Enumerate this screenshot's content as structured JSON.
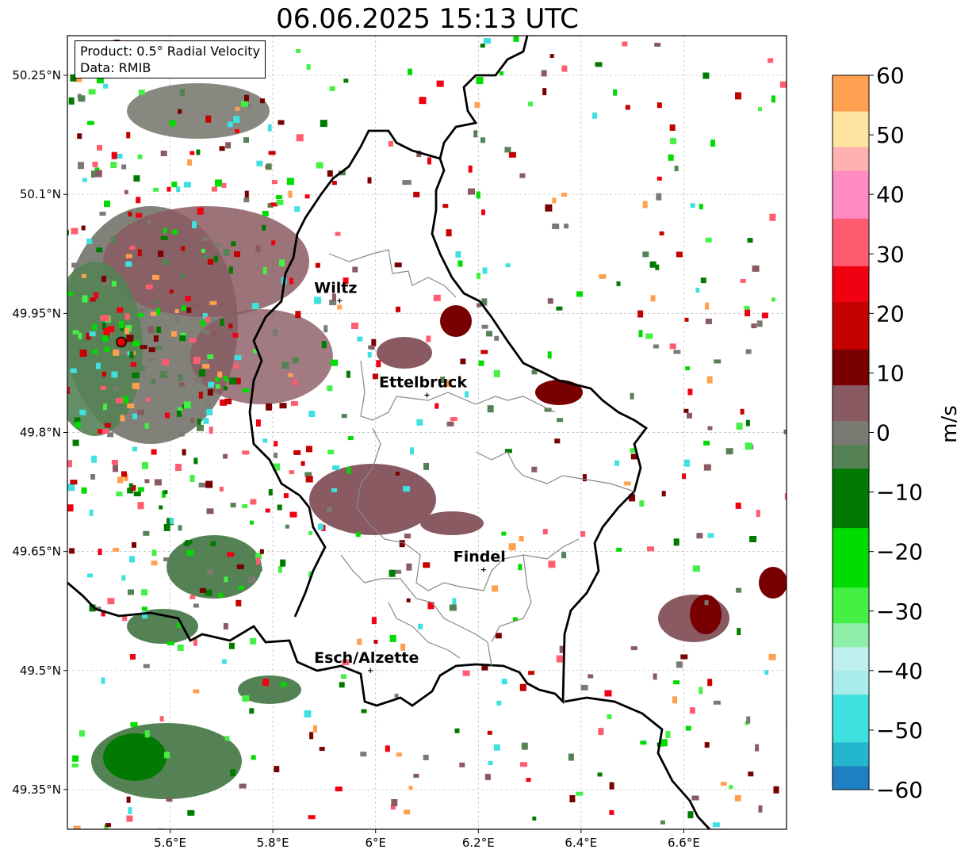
{
  "title": "06.06.2025 15:13 UTC",
  "info": {
    "product": "Product: 0.5° Radial Velocity",
    "data": "Data: RMIB"
  },
  "map": {
    "lon_range": [
      5.4,
      6.8
    ],
    "lat_range": [
      49.3,
      50.3
    ],
    "lon_ticks": [
      {
        "value": 5.6,
        "label": "5.6°E"
      },
      {
        "value": 5.8,
        "label": "5.8°E"
      },
      {
        "value": 6.0,
        "label": "6°E"
      },
      {
        "value": 6.2,
        "label": "6.2°E"
      },
      {
        "value": 6.4,
        "label": "6.4°E"
      },
      {
        "value": 6.6,
        "label": "6.6°E"
      }
    ],
    "lat_ticks": [
      {
        "value": 50.25,
        "label": "50.25°N"
      },
      {
        "value": 50.1,
        "label": "50.1°N"
      },
      {
        "value": 49.95,
        "label": "49.95°N"
      },
      {
        "value": 49.8,
        "label": "49.8°N"
      },
      {
        "value": 49.65,
        "label": "49.65°N"
      },
      {
        "value": 49.5,
        "label": "49.5°N"
      },
      {
        "value": 49.35,
        "label": "49.35°N"
      }
    ],
    "radar_site": {
      "lon": 5.505,
      "lat": 49.914
    },
    "cities": [
      {
        "name": "Wiltz",
        "lon": 5.93,
        "lat": 49.966
      },
      {
        "name": "Ettelbruck",
        "lon": 6.1,
        "lat": 49.847
      },
      {
        "name": "Findel",
        "lon": 6.21,
        "lat": 49.627
      },
      {
        "name": "Esch/Alzette",
        "lon": 5.99,
        "lat": 49.5
      }
    ]
  },
  "colorbar": {
    "label": "m/s",
    "range": [
      -60,
      60
    ],
    "ticks": [
      {
        "value": 60,
        "label": "60"
      },
      {
        "value": 50,
        "label": "50"
      },
      {
        "value": 40,
        "label": "40"
      },
      {
        "value": 30,
        "label": "30"
      },
      {
        "value": 20,
        "label": "20"
      },
      {
        "value": 10,
        "label": "10"
      },
      {
        "value": 0,
        "label": "0"
      },
      {
        "value": -10,
        "label": "−10"
      },
      {
        "value": -20,
        "label": "−20"
      },
      {
        "value": -30,
        "label": "−30"
      },
      {
        "value": -40,
        "label": "−40"
      },
      {
        "value": -50,
        "label": "−50"
      },
      {
        "value": -60,
        "label": "−60"
      }
    ],
    "colors": [
      {
        "from": -60,
        "to": -56,
        "color": "#1f7fc4"
      },
      {
        "from": -56,
        "to": -52,
        "color": "#25b6cf"
      },
      {
        "from": -52,
        "to": -44,
        "color": "#3fe0e0"
      },
      {
        "from": -44,
        "to": -40,
        "color": "#a8ecec"
      },
      {
        "from": -40,
        "to": -36,
        "color": "#bff0ee"
      },
      {
        "from": -36,
        "to": -32,
        "color": "#8ef0a8"
      },
      {
        "from": -32,
        "to": -26,
        "color": "#44f044"
      },
      {
        "from": -26,
        "to": -16,
        "color": "#00dc00"
      },
      {
        "from": -16,
        "to": -6,
        "color": "#007a00"
      },
      {
        "from": -6,
        "to": -2,
        "color": "#558255"
      },
      {
        "from": -2,
        "to": 2,
        "color": "#7b7a72"
      },
      {
        "from": 2,
        "to": 8,
        "color": "#8a5a62"
      },
      {
        "from": 8,
        "to": 14,
        "color": "#780000"
      },
      {
        "from": 14,
        "to": 22,
        "color": "#c40000"
      },
      {
        "from": 22,
        "to": 28,
        "color": "#f00010"
      },
      {
        "from": 28,
        "to": 36,
        "color": "#ff5c70"
      },
      {
        "from": 36,
        "to": 44,
        "color": "#ff8ac4"
      },
      {
        "from": 44,
        "to": 48,
        "color": "#ffb0b0"
      },
      {
        "from": 48,
        "to": 54,
        "color": "#ffe3a0"
      },
      {
        "from": 54,
        "to": 60,
        "color": "#ffa050"
      }
    ]
  }
}
